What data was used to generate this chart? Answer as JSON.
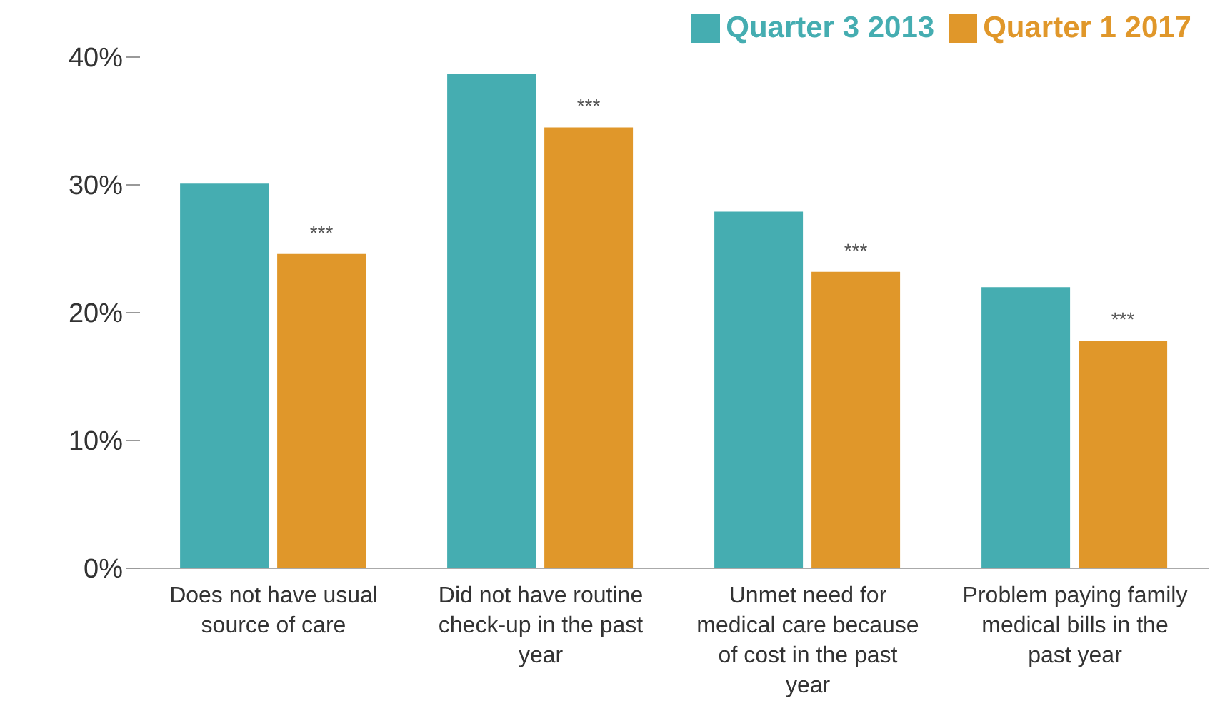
{
  "chart_data": {
    "type": "bar",
    "categories": [
      "Does not have usual source of care",
      "Did not have routine check-up in the past year",
      "Unmet need for medical care because of cost in the past year",
      "Problem paying family medical bills in the past year"
    ],
    "series": [
      {
        "name": "Quarter 3 2013",
        "color": "#45adb1",
        "values": [
          30.1,
          38.7,
          27.9,
          22.0
        ]
      },
      {
        "name": "Quarter 1 2017",
        "color": "#e0972a",
        "values": [
          24.6,
          34.5,
          23.2,
          17.8
        ]
      }
    ],
    "ylim": [
      0,
      40
    ],
    "yticks": [
      {
        "value": 0,
        "label": "0%"
      },
      {
        "value": 10,
        "label": "10%"
      },
      {
        "value": 20,
        "label": "20%"
      },
      {
        "value": 30,
        "label": "30%"
      },
      {
        "value": 40,
        "label": "40%"
      }
    ],
    "grid": false,
    "legend": "top right",
    "annotations": [
      {
        "text": "***",
        "x": "Does not have usual source of care",
        "y": 24.6
      },
      {
        "text": "***",
        "x": "Did not have routine check-up in the past year",
        "y": 34.5
      },
      {
        "text": "***",
        "x": "Unmet need for medical care because of cost in the past year",
        "y": 23.2
      },
      {
        "text": "***",
        "x": "Problem paying family medical bills in the past year",
        "y": 17.8
      }
    ]
  }
}
